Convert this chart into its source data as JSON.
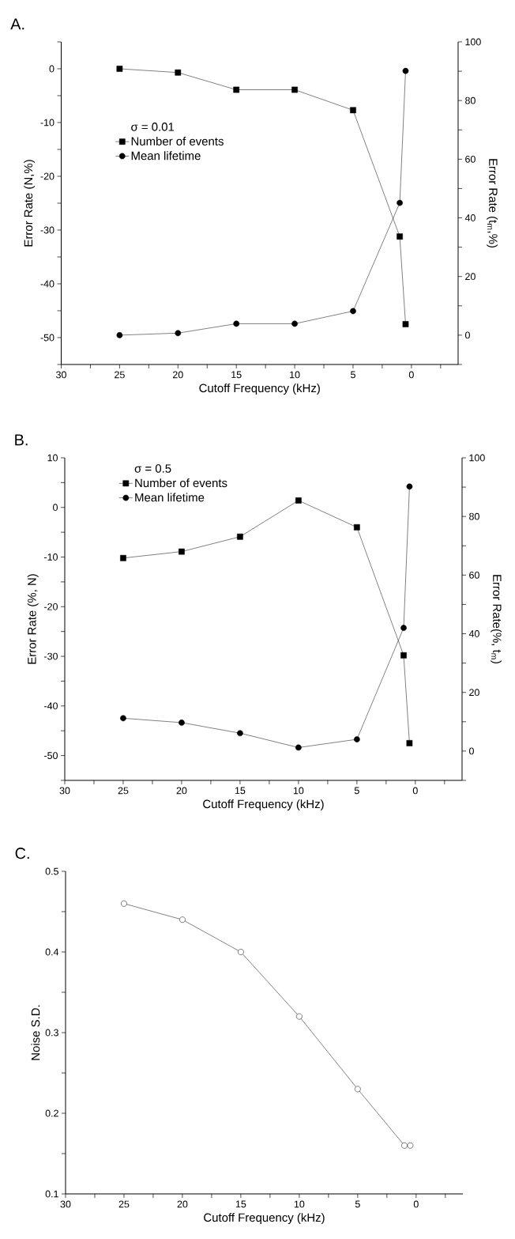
{
  "chart_data": [
    {
      "type": "line",
      "title": "A.",
      "xlabel": "Cutoff Frequency (kHz)",
      "ylabel": "Error Rate (N,%)",
      "y2label": "Error Rate (t$_{m}$,%)",
      "legend_title": "σ = 0.01",
      "legend": "left",
      "xlim": [
        30,
        -4
      ],
      "xticks": [
        30,
        {
          "value": 27.5,
          "label": null
        },
        25,
        {
          "value": 22.5,
          "label": null
        },
        20,
        {
          "value": 17.5,
          "label": null
        },
        15,
        {
          "value": 12.5,
          "label": null
        },
        10,
        {
          "value": 7.5,
          "label": null
        },
        5,
        {
          "value": 2.5,
          "label": null
        },
        0,
        {
          "value": -2.5,
          "label": null
        }
      ],
      "ylim": [
        -55,
        5
      ],
      "yticks": [
        {
          "value": -55,
          "label": null
        },
        -50,
        {
          "value": -45,
          "label": null
        },
        -40,
        {
          "value": -35,
          "label": null
        },
        -30,
        {
          "value": -25,
          "label": null
        },
        -20,
        {
          "value": -15,
          "label": null
        },
        -10,
        {
          "value": -5,
          "label": null
        },
        0,
        {
          "value": 5,
          "label": null
        }
      ],
      "y2lim": [
        -10,
        100
      ],
      "y2ticks": [
        {
          "value": -10,
          "label": null
        },
        0,
        {
          "value": 10,
          "label": null
        },
        20,
        {
          "value": 30,
          "label": null
        },
        40,
        {
          "value": 50,
          "label": null
        },
        60,
        {
          "value": 70,
          "label": null
        },
        80,
        {
          "value": 90,
          "label": null
        },
        100
      ],
      "series": [
        {
          "name": "Number of events",
          "color": "#000000",
          "marker": "square",
          "x": [
            25,
            20,
            15,
            10,
            5,
            1,
            0.5
          ],
          "values": [
            0,
            -0.7,
            -3.9,
            -3.9,
            -7.7,
            -31.2,
            -47.5
          ]
        },
        {
          "name": "Mean lifetime",
          "color": "#000000",
          "marker": "circle",
          "axis": "y2",
          "x": [
            25,
            20,
            15,
            10,
            5,
            1,
            0.5
          ],
          "values": [
            0,
            0.7,
            3.9,
            3.9,
            8.2,
            45.1,
            90.1
          ]
        }
      ]
    },
    {
      "type": "line",
      "title": "B.",
      "xlabel": "Cutoff Frequency (kHz)",
      "ylabel": "Error Rate (%, N)",
      "y2label": "Error Rate(%, t$_{m}$)",
      "legend_title": "σ = 0.5",
      "legend": "top left",
      "xlim": [
        30,
        -4
      ],
      "xticks": [
        30,
        {
          "value": 27.5,
          "label": null
        },
        25,
        {
          "value": 22.5,
          "label": null
        },
        20,
        {
          "value": 17.5,
          "label": null
        },
        15,
        {
          "value": 12.5,
          "label": null
        },
        10,
        {
          "value": 7.5,
          "label": null
        },
        5,
        {
          "value": 2.5,
          "label": null
        },
        0,
        {
          "value": -2.5,
          "label": null
        }
      ],
      "ylim": [
        -55,
        10
      ],
      "yticks": [
        {
          "value": -55,
          "label": null
        },
        -50,
        {
          "value": -45,
          "label": null
        },
        -40,
        {
          "value": -35,
          "label": null
        },
        -30,
        {
          "value": -25,
          "label": null
        },
        -20,
        {
          "value": -15,
          "label": null
        },
        -10,
        {
          "value": -5,
          "label": null
        },
        0,
        {
          "value": 5,
          "label": null
        },
        10
      ],
      "y2lim": [
        -10,
        100
      ],
      "y2ticks": [
        {
          "value": -10,
          "label": null
        },
        0,
        {
          "value": 10,
          "label": null
        },
        20,
        {
          "value": 30,
          "label": null
        },
        40,
        {
          "value": 50,
          "label": null
        },
        60,
        {
          "value": 70,
          "label": null
        },
        80,
        {
          "value": 90,
          "label": null
        },
        100
      ],
      "series": [
        {
          "name": "Number of events",
          "color": "#000000",
          "marker": "square",
          "x": [
            25,
            20,
            15,
            10,
            5,
            1,
            0.5
          ],
          "values": [
            -10.2,
            -8.9,
            -5.9,
            1.4,
            -4.0,
            -29.8,
            -47.5
          ]
        },
        {
          "name": "Mean lifetime",
          "color": "#000000",
          "marker": "circle",
          "axis": "y2",
          "x": [
            25,
            20,
            15,
            10,
            5,
            1,
            0.5
          ],
          "values": [
            11.2,
            9.7,
            6.1,
            1.2,
            4.0,
            42.0,
            90.2
          ]
        }
      ]
    },
    {
      "type": "line",
      "title": "C.",
      "xlabel": "Cutoff Frequency (kHz)",
      "ylabel": "Noise S.D.",
      "xlim": [
        30,
        -4
      ],
      "xticks": [
        30,
        {
          "value": 27.5,
          "label": null
        },
        25,
        {
          "value": 22.5,
          "label": null
        },
        20,
        {
          "value": 17.5,
          "label": null
        },
        15,
        {
          "value": 12.5,
          "label": null
        },
        10,
        {
          "value": 7.5,
          "label": null
        },
        5,
        {
          "value": 2.5,
          "label": null
        },
        0,
        {
          "value": -2.5,
          "label": null
        }
      ],
      "ylim": [
        0.1,
        0.5
      ],
      "yticks": [
        0.1,
        {
          "value": 0.15,
          "label": null
        },
        0.2,
        {
          "value": 0.25,
          "label": null
        },
        0.3,
        {
          "value": 0.35,
          "label": null
        },
        0.4,
        {
          "value": 0.45,
          "label": null
        },
        0.5
      ],
      "series": [
        {
          "color": "#000000",
          "marker": "circle",
          "x": [
            25,
            20,
            15,
            10,
            5,
            1,
            0.5
          ],
          "values": [
            0.46,
            0.44,
            0.4,
            0.32,
            0.23,
            0.16,
            0.16
          ]
        }
      ]
    }
  ]
}
